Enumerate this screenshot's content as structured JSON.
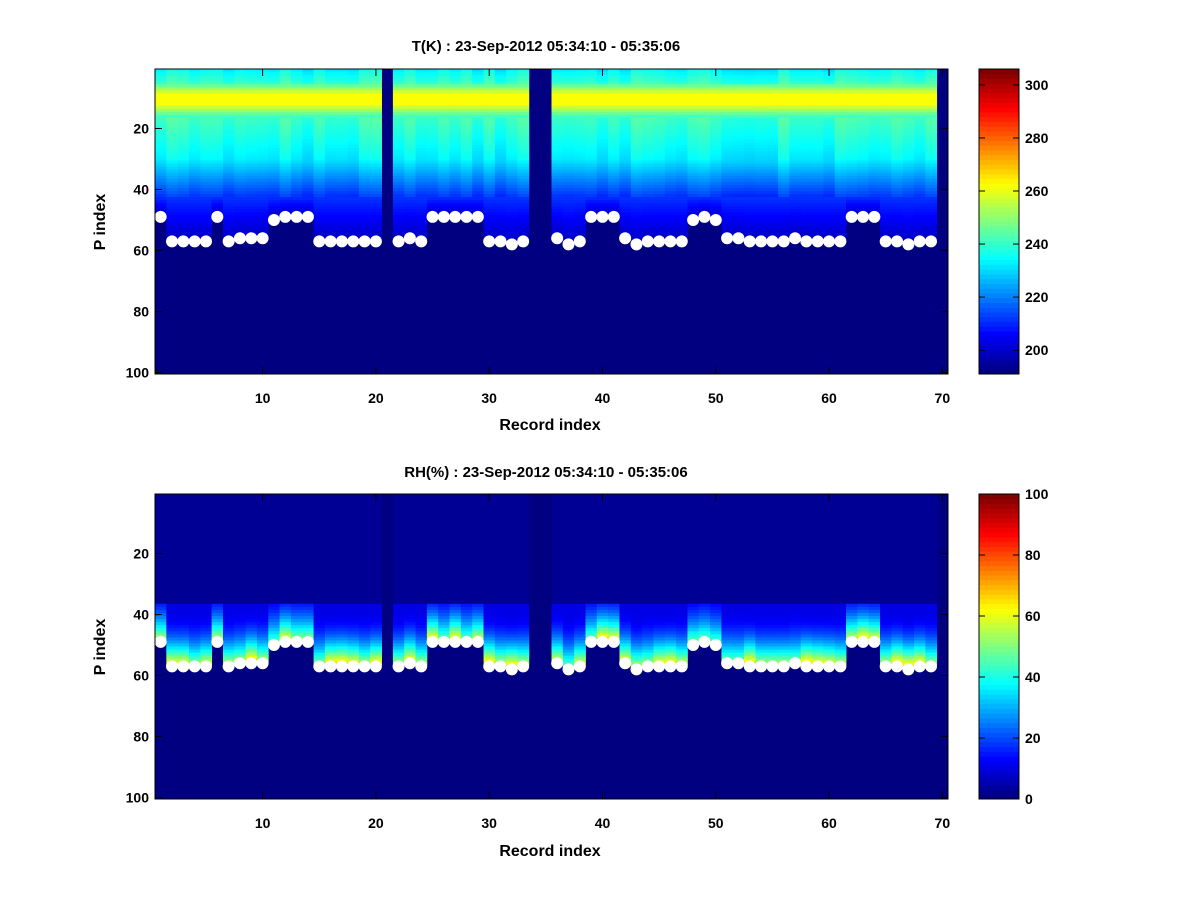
{
  "chart_data": [
    {
      "id": "temperature",
      "type": "heatmap",
      "title": "T(K) : 23-Sep-2012 05:34:10 - 05:35:06",
      "xlabel": "Record index",
      "ylabel": "P index",
      "xlim": [
        0.5,
        70.5
      ],
      "ylim": [
        0.5,
        100.5
      ],
      "y_reversed": true,
      "xticks": [
        10,
        20,
        30,
        40,
        50,
        60,
        70
      ],
      "yticks": [
        20,
        40,
        60,
        80,
        100
      ],
      "colorbar": {
        "range": [
          191,
          306
        ],
        "ticks": [
          200,
          220,
          240,
          260,
          280,
          300
        ]
      },
      "colormap": "jet",
      "gap_records": [
        21,
        34,
        35,
        70
      ],
      "field_description": "temperature profile: bright band near P index 9-12, decreasing with depth, masked below surface markers",
      "surface_markers": {
        "x": [
          1,
          2,
          3,
          4,
          5,
          6,
          7,
          8,
          9,
          10,
          11,
          12,
          13,
          14,
          15,
          16,
          17,
          18,
          19,
          20,
          22,
          23,
          24,
          25,
          26,
          27,
          28,
          29,
          30,
          31,
          32,
          33,
          36,
          37,
          38,
          39,
          40,
          41,
          42,
          43,
          44,
          45,
          46,
          47,
          48,
          49,
          50,
          51,
          52,
          53,
          54,
          55,
          56,
          57,
          58,
          59,
          60,
          61,
          62,
          63,
          64,
          65,
          66,
          67,
          68,
          69
        ],
        "y": [
          49,
          57,
          57,
          57,
          57,
          49,
          57,
          56,
          56,
          56,
          50,
          49,
          49,
          49,
          57,
          57,
          57,
          57,
          57,
          57,
          57,
          56,
          57,
          49,
          49,
          49,
          49,
          49,
          57,
          57,
          58,
          57,
          56,
          58,
          57,
          49,
          49,
          49,
          56,
          58,
          57,
          57,
          57,
          57,
          50,
          49,
          50,
          56,
          56,
          57,
          57,
          57,
          57,
          56,
          57,
          57,
          57,
          57,
          49,
          49,
          49,
          57,
          57,
          58,
          57,
          57
        ]
      }
    },
    {
      "id": "humidity",
      "type": "heatmap",
      "title": "RH(%) : 23-Sep-2012 05:34:10 - 05:35:06",
      "xlabel": "Record index",
      "ylabel": "P index",
      "xlim": [
        0.5,
        70.5
      ],
      "ylim": [
        0.5,
        100.5
      ],
      "y_reversed": true,
      "xticks": [
        10,
        20,
        30,
        40,
        50,
        60,
        70
      ],
      "yticks": [
        20,
        40,
        60,
        80,
        100
      ],
      "colorbar": {
        "range": [
          0,
          100
        ],
        "ticks": [
          0,
          20,
          40,
          60,
          80,
          100
        ]
      },
      "colormap": "jet",
      "gap_records": [
        21,
        34,
        35,
        70
      ],
      "field_description": "relative humidity near zero above P index ~37, increasing towards the surface markers, masked below",
      "surface_markers": {
        "x": [
          1,
          2,
          3,
          4,
          5,
          6,
          7,
          8,
          9,
          10,
          11,
          12,
          13,
          14,
          15,
          16,
          17,
          18,
          19,
          20,
          22,
          23,
          24,
          25,
          26,
          27,
          28,
          29,
          30,
          31,
          32,
          33,
          36,
          37,
          38,
          39,
          40,
          41,
          42,
          43,
          44,
          45,
          46,
          47,
          48,
          49,
          50,
          51,
          52,
          53,
          54,
          55,
          56,
          57,
          58,
          59,
          60,
          61,
          62,
          63,
          64,
          65,
          66,
          67,
          68,
          69
        ],
        "y": [
          49,
          57,
          57,
          57,
          57,
          49,
          57,
          56,
          56,
          56,
          50,
          49,
          49,
          49,
          57,
          57,
          57,
          57,
          57,
          57,
          57,
          56,
          57,
          49,
          49,
          49,
          49,
          49,
          57,
          57,
          58,
          57,
          56,
          58,
          57,
          49,
          49,
          49,
          56,
          58,
          57,
          57,
          57,
          57,
          50,
          49,
          50,
          56,
          56,
          57,
          57,
          57,
          57,
          56,
          57,
          57,
          57,
          57,
          49,
          49,
          49,
          57,
          57,
          58,
          57,
          57
        ]
      }
    }
  ]
}
